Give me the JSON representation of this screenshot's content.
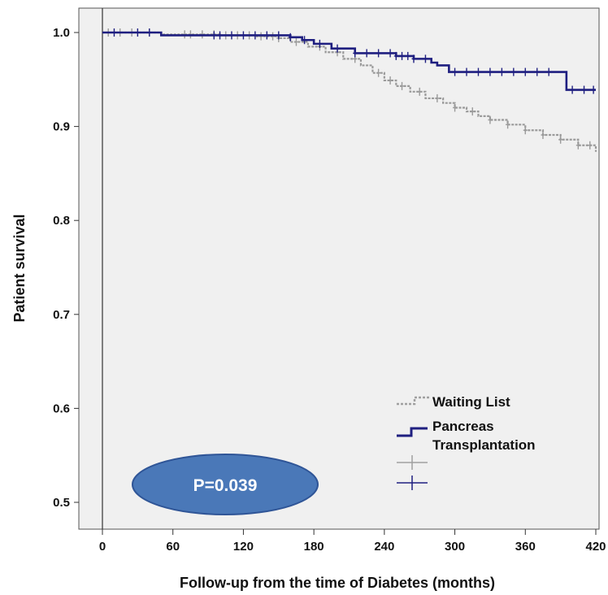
{
  "chart_data": {
    "type": "line",
    "subtype": "kaplan-meier",
    "xlabel": "Follow-up from the time of Diabetes (months)",
    "ylabel": "Patient survival",
    "xlim": [
      0,
      420
    ],
    "ylim": [
      0.5,
      1.0
    ],
    "x_ticks": [
      0,
      60,
      120,
      180,
      240,
      300,
      360,
      420
    ],
    "y_ticks": [
      1.0,
      0.9,
      0.8,
      0.7,
      0.6,
      0.5
    ],
    "y_tick_labels": [
      "1.0",
      "0.9",
      "0.8",
      "0.7",
      "0.6",
      "0.5"
    ],
    "grid": false,
    "background": "#f0f0f0",
    "legend_position": "bottom-right",
    "series": [
      {
        "name": "Waiting List",
        "color": "#9a9a9a",
        "line_style": "dotted",
        "x": [
          0,
          50,
          100,
          130,
          150,
          160,
          175,
          190,
          205,
          220,
          230,
          240,
          250,
          262,
          275,
          290,
          300,
          310,
          320,
          330,
          345,
          360,
          375,
          390,
          405,
          420
        ],
        "y": [
          1.0,
          0.998,
          0.997,
          0.996,
          0.994,
          0.99,
          0.985,
          0.979,
          0.972,
          0.965,
          0.957,
          0.949,
          0.943,
          0.937,
          0.93,
          0.925,
          0.92,
          0.916,
          0.911,
          0.907,
          0.902,
          0.896,
          0.891,
          0.886,
          0.88,
          0.873
        ],
        "censor_x": [
          5,
          15,
          25,
          40,
          70,
          75,
          85,
          95,
          105,
          115,
          125,
          135,
          145,
          150,
          165,
          185,
          200,
          215,
          235,
          245,
          255,
          270,
          285,
          300,
          315,
          330,
          345,
          360,
          375,
          390,
          405,
          415
        ]
      },
      {
        "name": "Pancreas Transplantation",
        "color": "#1f1f80",
        "line_style": "solid",
        "x": [
          0,
          50,
          160,
          170,
          180,
          195,
          215,
          250,
          265,
          280,
          285,
          295,
          395,
          420
        ],
        "y": [
          1.0,
          0.997,
          0.995,
          0.992,
          0.988,
          0.983,
          0.978,
          0.975,
          0.972,
          0.968,
          0.965,
          0.958,
          0.939,
          0.939
        ],
        "censor_x": [
          10,
          30,
          40,
          95,
          100,
          110,
          120,
          130,
          140,
          150,
          160,
          172,
          185,
          200,
          215,
          225,
          235,
          245,
          250,
          255,
          260,
          265,
          275,
          300,
          310,
          320,
          330,
          340,
          350,
          360,
          370,
          380,
          400,
          410,
          418
        ]
      }
    ],
    "legend": {
      "entries": [
        {
          "label": "Waiting List",
          "color": "#a0a0a0",
          "symbol": "step-dotted"
        },
        {
          "label_line1": "Pancreas",
          "label_line2": "Transplantation",
          "color": "#1f1f80",
          "symbol": "step-solid"
        },
        {
          "label": "",
          "color": "#a0a0a0",
          "symbol": "censor"
        },
        {
          "label": "",
          "color": "#1f1f80",
          "symbol": "censor"
        }
      ]
    },
    "annotation": {
      "text": "P=0.039",
      "fill": "#4a78b8",
      "stroke": "#2f5597"
    }
  }
}
